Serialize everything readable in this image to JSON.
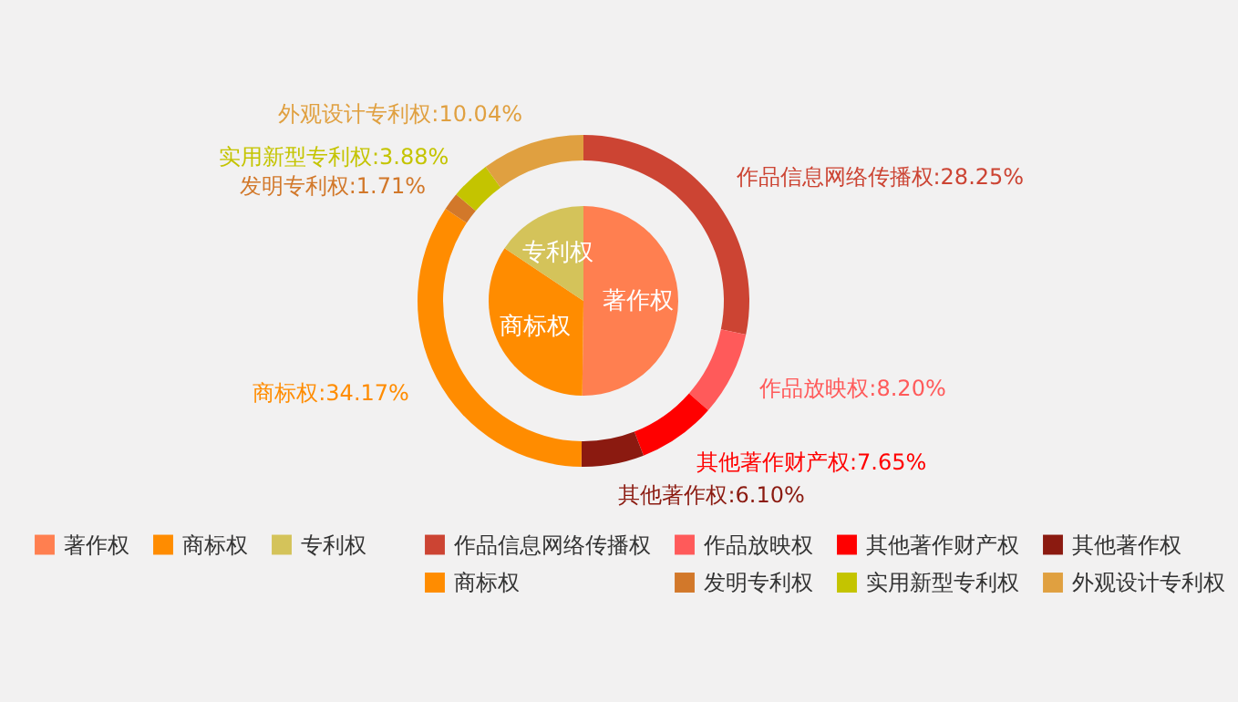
{
  "chart_data": [
    {
      "type": "pie",
      "categories": [
        "著作权",
        "商标权",
        "专利权"
      ],
      "values": [
        50.2,
        34.17,
        15.63
      ],
      "colors": [
        "#ff7f50",
        "#ff8c00",
        "#d4c35a"
      ],
      "legend": "bottom"
    },
    {
      "type": "donut",
      "categories": [
        "作品信息网络传播权",
        "作品放映权",
        "其他著作财产权",
        "其他著作权",
        "商标权",
        "发明专利权",
        "实用新型专利权",
        "外观设计专利权"
      ],
      "values": [
        28.25,
        8.2,
        7.65,
        6.1,
        34.17,
        1.71,
        3.88,
        10.04
      ],
      "value_labels": [
        ":28.25%",
        ":8.20%",
        ":7.65%",
        ":6.10%",
        ":34.17%",
        ":1.71%",
        ":3.88%",
        ":10.04%"
      ],
      "colors": [
        "#cc4433",
        "#ff5a5a",
        "#ff0000",
        "#8b1a10",
        "#ff8c00",
        "#d2782a",
        "#c4c400",
        "#e0a040"
      ],
      "legend": "bottom"
    }
  ]
}
